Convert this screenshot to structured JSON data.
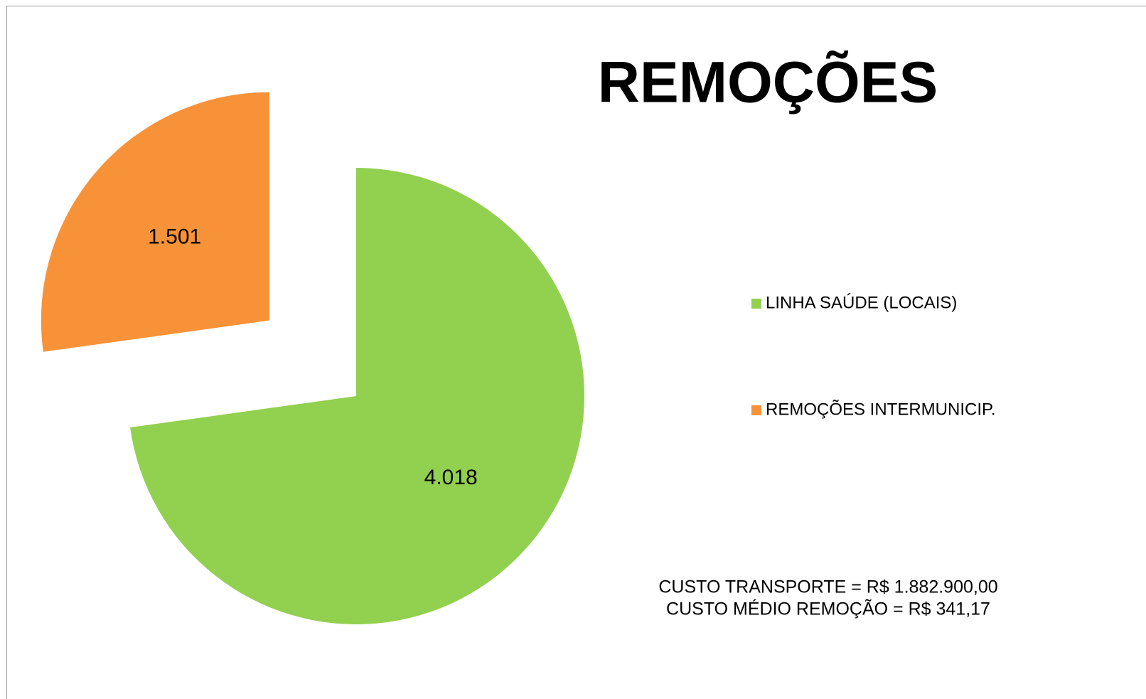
{
  "chart_data": {
    "type": "pie",
    "title": "REMOÇÕES",
    "categories": [
      "LINHA SAÚDE (LOCAIS)",
      "REMOÇÕES INTERMUNICIP."
    ],
    "values": [
      4018,
      1501
    ],
    "value_labels": [
      "4.018",
      "1.501"
    ],
    "colors": [
      "#92d050",
      "#f79239"
    ],
    "exploded": [
      false,
      true
    ],
    "legend": "right",
    "annotations": [
      "CUSTO TRANSPORTE = R$ 1.882.900,00",
      "CUSTO MÉDIO REMOÇÃO = R$ 341,17"
    ]
  }
}
